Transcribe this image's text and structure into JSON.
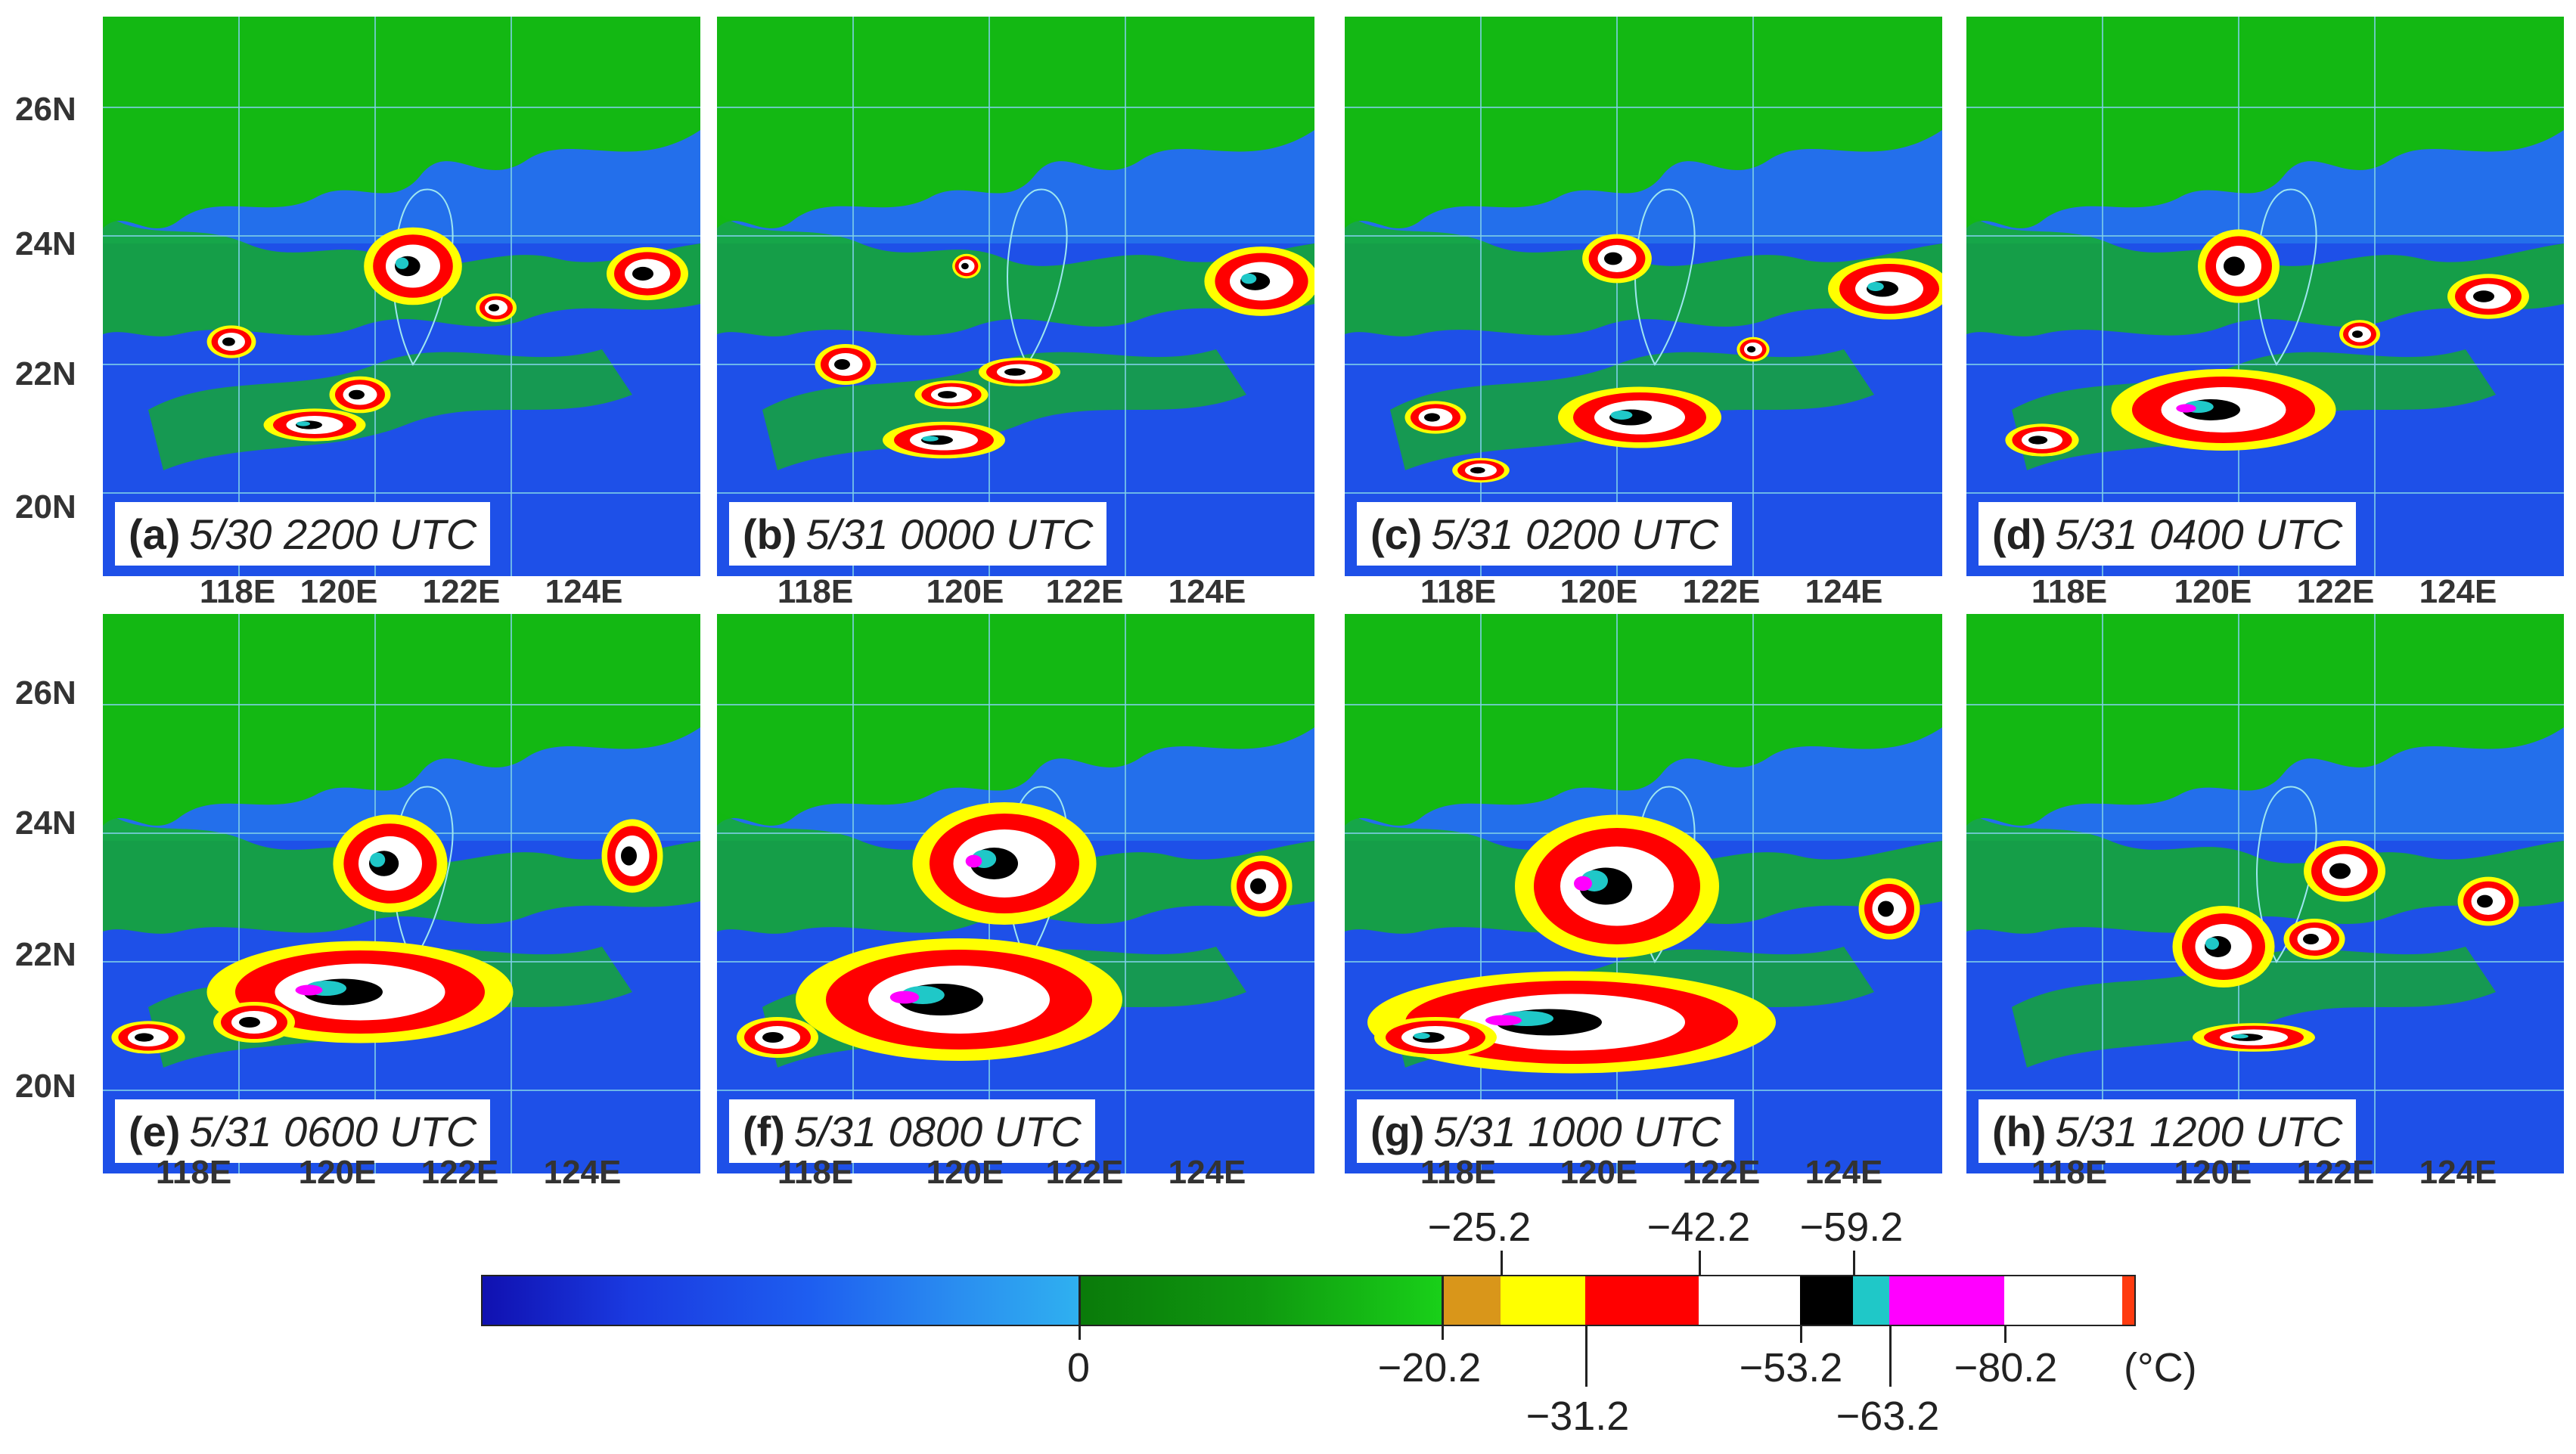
{
  "figure": {
    "latitude_labels": [
      "26N",
      "24N",
      "22N",
      "20N"
    ],
    "longitude_labels": [
      "118E",
      "120E",
      "122E",
      "124E"
    ],
    "panels": [
      {
        "id": "(a)",
        "time": "5/30 2200 UTC"
      },
      {
        "id": "(b)",
        "time": "5/31 0000 UTC"
      },
      {
        "id": "(c)",
        "time": "5/31 0200 UTC"
      },
      {
        "id": "(d)",
        "time": "5/31 0400 UTC"
      },
      {
        "id": "(e)",
        "time": "5/31 0600 UTC"
      },
      {
        "id": "(f)",
        "time": "5/31 0800 UTC"
      },
      {
        "id": "(g)",
        "time": "5/31 1000 UTC"
      },
      {
        "id": "(h)",
        "time": "5/31 1200 UTC"
      }
    ]
  },
  "colorbar": {
    "unit": "(°C)",
    "labels_top": [
      "−25.2",
      "−42.2",
      "−59.2"
    ],
    "labels_bottom": [
      "0",
      "−20.2",
      "−53.2",
      "−80.2"
    ],
    "labels_lower": [
      "−31.2",
      "−63.2"
    ],
    "colors": {
      "ocean_blue": "#1e50e8",
      "light_blue": "#2fa8f0",
      "green": "#13b813",
      "orange": "#d9961a",
      "yellow": "#ffff00",
      "red": "#ff0000",
      "white": "#ffffff",
      "black": "#000000",
      "cyan": "#1fc8c8",
      "magenta": "#ff00ff"
    }
  }
}
